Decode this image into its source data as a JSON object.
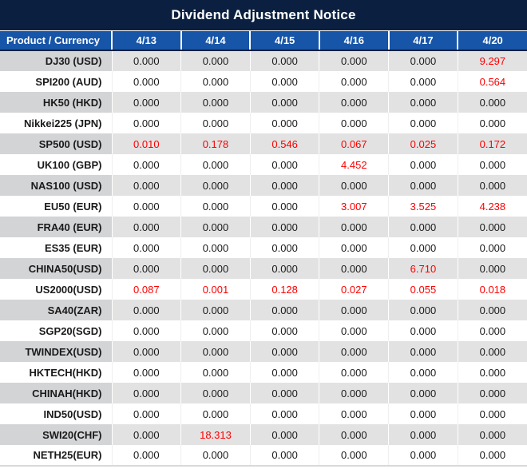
{
  "title": "Dividend Adjustment Notice",
  "colors": {
    "title_bg": "#0B2040",
    "header_bg": "#1655A8",
    "stripe_product_bg": "#D3D4D6",
    "stripe_value_bg": "#E2E2E2",
    "highlight_red": "#FF0000"
  },
  "table": {
    "corner_header": "Product / Currency",
    "date_headers": [
      "4/13",
      "4/14",
      "4/15",
      "4/16",
      "4/17",
      "4/20"
    ],
    "rows": [
      {
        "product": "DJ30 (USD)",
        "values": [
          "0.000",
          "0.000",
          "0.000",
          "0.000",
          "0.000",
          "9.297"
        ],
        "red": [
          5
        ]
      },
      {
        "product": "SPI200 (AUD)",
        "values": [
          "0.000",
          "0.000",
          "0.000",
          "0.000",
          "0.000",
          "0.564"
        ],
        "red": [
          5
        ]
      },
      {
        "product": "HK50 (HKD)",
        "values": [
          "0.000",
          "0.000",
          "0.000",
          "0.000",
          "0.000",
          "0.000"
        ],
        "red": []
      },
      {
        "product": "Nikkei225 (JPN)",
        "values": [
          "0.000",
          "0.000",
          "0.000",
          "0.000",
          "0.000",
          "0.000"
        ],
        "red": []
      },
      {
        "product": "SP500 (USD)",
        "values": [
          "0.010",
          "0.178",
          "0.546",
          "0.067",
          "0.025",
          "0.172"
        ],
        "red": [
          0,
          1,
          2,
          3,
          4,
          5
        ]
      },
      {
        "product": "UK100 (GBP)",
        "values": [
          "0.000",
          "0.000",
          "0.000",
          "4.452",
          "0.000",
          "0.000"
        ],
        "red": [
          3
        ]
      },
      {
        "product": "NAS100 (USD)",
        "values": [
          "0.000",
          "0.000",
          "0.000",
          "0.000",
          "0.000",
          "0.000"
        ],
        "red": []
      },
      {
        "product": "EU50 (EUR)",
        "values": [
          "0.000",
          "0.000",
          "0.000",
          "3.007",
          "3.525",
          "4.238"
        ],
        "red": [
          3,
          4,
          5
        ]
      },
      {
        "product": "FRA40 (EUR)",
        "values": [
          "0.000",
          "0.000",
          "0.000",
          "0.000",
          "0.000",
          "0.000"
        ],
        "red": []
      },
      {
        "product": "ES35 (EUR)",
        "values": [
          "0.000",
          "0.000",
          "0.000",
          "0.000",
          "0.000",
          "0.000"
        ],
        "red": []
      },
      {
        "product": "CHINA50(USD)",
        "values": [
          "0.000",
          "0.000",
          "0.000",
          "0.000",
          "6.710",
          "0.000"
        ],
        "red": [
          4
        ]
      },
      {
        "product": "US2000(USD)",
        "values": [
          "0.087",
          "0.001",
          "0.128",
          "0.027",
          "0.055",
          "0.018"
        ],
        "red": [
          0,
          1,
          2,
          3,
          4,
          5
        ]
      },
      {
        "product": "SA40(ZAR)",
        "values": [
          "0.000",
          "0.000",
          "0.000",
          "0.000",
          "0.000",
          "0.000"
        ],
        "red": []
      },
      {
        "product": "SGP20(SGD)",
        "values": [
          "0.000",
          "0.000",
          "0.000",
          "0.000",
          "0.000",
          "0.000"
        ],
        "red": []
      },
      {
        "product": "TWINDEX(USD)",
        "values": [
          "0.000",
          "0.000",
          "0.000",
          "0.000",
          "0.000",
          "0.000"
        ],
        "red": []
      },
      {
        "product": "HKTECH(HKD)",
        "values": [
          "0.000",
          "0.000",
          "0.000",
          "0.000",
          "0.000",
          "0.000"
        ],
        "red": []
      },
      {
        "product": "CHINAH(HKD)",
        "values": [
          "0.000",
          "0.000",
          "0.000",
          "0.000",
          "0.000",
          "0.000"
        ],
        "red": []
      },
      {
        "product": "IND50(USD)",
        "values": [
          "0.000",
          "0.000",
          "0.000",
          "0.000",
          "0.000",
          "0.000"
        ],
        "red": []
      },
      {
        "product": "SWI20(CHF)",
        "values": [
          "0.000",
          "18.313",
          "0.000",
          "0.000",
          "0.000",
          "0.000"
        ],
        "red": [
          1
        ]
      },
      {
        "product": "NETH25(EUR)",
        "values": [
          "0.000",
          "0.000",
          "0.000",
          "0.000",
          "0.000",
          "0.000"
        ],
        "red": []
      }
    ]
  }
}
